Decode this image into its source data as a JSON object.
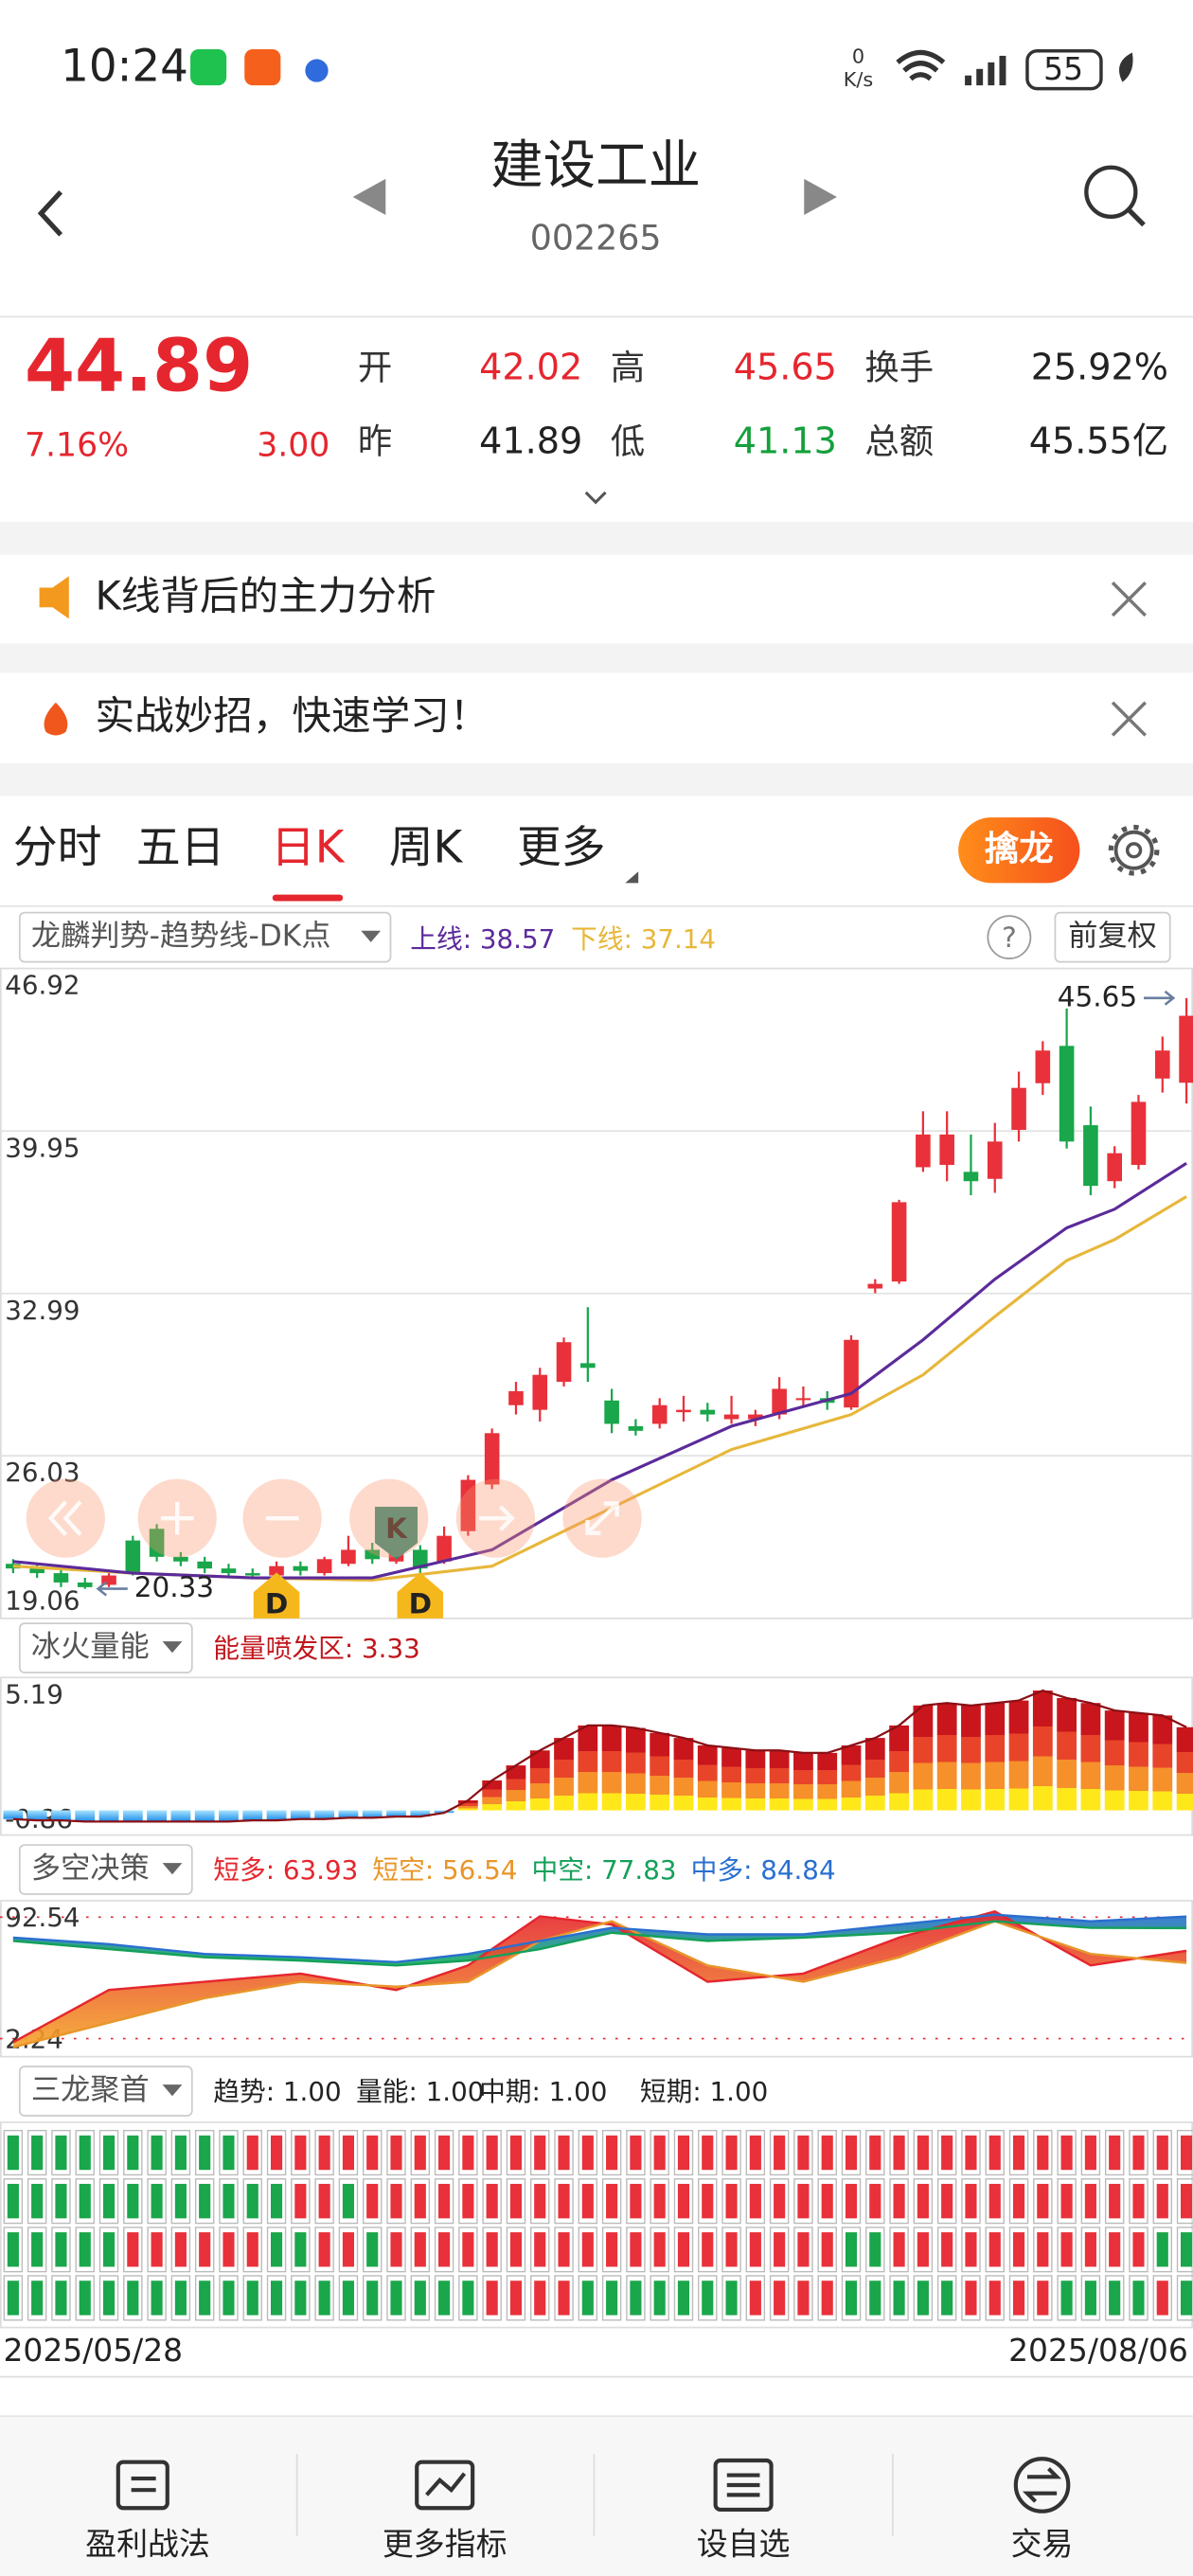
{
  "status_bar": {
    "time": "10:24",
    "net_speed": "0",
    "net_unit": "K/s",
    "battery": "55"
  },
  "header": {
    "title": "建设工业",
    "code": "002265"
  },
  "quote": {
    "price": "44.89",
    "change_pct": "7.16%",
    "change": "3.00",
    "fields": [
      {
        "label": "开",
        "value": "42.02",
        "color": "#e5262e"
      },
      {
        "label": "高",
        "value": "45.65",
        "color": "#e5262e"
      },
      {
        "label": "换手",
        "value": "25.92%",
        "color": "#222222"
      },
      {
        "label": "昨",
        "value": "41.89",
        "color": "#222222"
      },
      {
        "label": "低",
        "value": "41.13",
        "color": "#14a03c"
      },
      {
        "label": "总额",
        "value": "45.55亿",
        "color": "#222222"
      }
    ]
  },
  "banners": [
    "K线背后的主力分析",
    "实战妙招，快速学习！"
  ],
  "tabs": {
    "items": [
      "分时",
      "五日",
      "日K",
      "周K",
      "更多"
    ],
    "active": 2,
    "action": "擒龙"
  },
  "help": "?",
  "price_chart": {
    "indicator": "龙麟判势-趋势线-DK点",
    "legend": [
      {
        "label": "上线: 38.57",
        "color": "#5b2a9a"
      },
      {
        "label": "下线: 37.14",
        "color": "#e7b73a"
      }
    ],
    "adjust": "前复权",
    "ylim": [
      19.06,
      46.92
    ],
    "yticks": [
      46.92,
      39.95,
      32.99,
      26.03,
      19.06
    ],
    "candles": [
      [
        21.4,
        21.2,
        21.6,
        21.0
      ],
      [
        21.2,
        21.0,
        21.4,
        20.8
      ],
      [
        21.0,
        20.6,
        21.2,
        20.4
      ],
      [
        20.6,
        20.4,
        20.8,
        20.33
      ],
      [
        20.5,
        20.9,
        21.0,
        20.4
      ],
      [
        22.4,
        21.0,
        22.6,
        20.9
      ],
      [
        22.9,
        21.7,
        23.1,
        21.5
      ],
      [
        21.7,
        21.5,
        21.9,
        21.3
      ],
      [
        21.5,
        21.2,
        21.7,
        21.0
      ],
      [
        21.2,
        21.0,
        21.4,
        20.9
      ],
      [
        21.0,
        20.9,
        21.2,
        20.8
      ],
      [
        20.9,
        21.3,
        21.5,
        20.8
      ],
      [
        21.3,
        21.1,
        21.5,
        20.9
      ],
      [
        21.0,
        21.6,
        21.7,
        20.9
      ],
      [
        21.4,
        22.0,
        22.6,
        21.3
      ],
      [
        22.0,
        21.6,
        22.3,
        21.4
      ],
      [
        21.5,
        22.1,
        22.7,
        21.4
      ],
      [
        22.0,
        21.2,
        22.2,
        21.0
      ],
      [
        21.5,
        22.6,
        23.0,
        21.4
      ],
      [
        22.8,
        25.0,
        25.2,
        22.6
      ],
      [
        24.8,
        27.0,
        27.2,
        24.6
      ],
      [
        28.2,
        28.8,
        29.2,
        27.8
      ],
      [
        28.0,
        29.5,
        29.8,
        27.5
      ],
      [
        29.2,
        30.9,
        31.1,
        29.0
      ],
      [
        30.0,
        29.8,
        32.4,
        29.2
      ],
      [
        28.4,
        27.4,
        28.9,
        27.0
      ],
      [
        27.3,
        27.1,
        27.6,
        26.9
      ],
      [
        27.4,
        28.2,
        28.5,
        27.2
      ],
      [
        27.9,
        28.0,
        28.6,
        27.5
      ],
      [
        28.0,
        27.8,
        28.3,
        27.5
      ],
      [
        27.6,
        27.8,
        28.6,
        27.4
      ],
      [
        27.6,
        27.8,
        28.0,
        27.3
      ],
      [
        27.8,
        28.9,
        29.4,
        27.6
      ],
      [
        28.5,
        28.5,
        29.0,
        28.1
      ],
      [
        28.5,
        28.3,
        28.8,
        28.0
      ],
      [
        28.1,
        31.0,
        31.2,
        28.0
      ],
      [
        33.2,
        33.4,
        33.6,
        33.0
      ],
      [
        33.5,
        36.9,
        37.0,
        33.4
      ],
      [
        38.4,
        39.8,
        40.8,
        38.2
      ],
      [
        38.5,
        39.8,
        40.8,
        37.8
      ],
      [
        38.2,
        37.8,
        39.8,
        37.2
      ],
      [
        37.9,
        39.5,
        40.3,
        37.3
      ],
      [
        40.0,
        41.8,
        42.5,
        39.5
      ],
      [
        42.0,
        43.4,
        43.8,
        41.5
      ],
      [
        43.6,
        39.5,
        45.2,
        39.2
      ],
      [
        40.2,
        37.6,
        41.0,
        37.2
      ],
      [
        37.8,
        39.0,
        39.3,
        37.5
      ],
      [
        38.5,
        41.2,
        41.5,
        38.3
      ],
      [
        42.2,
        43.4,
        44.0,
        41.6
      ],
      [
        42.02,
        44.89,
        45.65,
        41.13
      ]
    ],
    "trend": {
      "x": [
        0,
        5,
        10,
        15,
        20,
        25,
        30,
        35,
        38,
        41,
        44,
        46,
        49
      ],
      "upper": [
        21.5,
        21.0,
        20.8,
        20.8,
        22.0,
        25.0,
        27.3,
        28.7,
        31.0,
        33.6,
        35.8,
        36.6,
        38.57
      ],
      "lower": [
        21.3,
        21.0,
        20.8,
        20.7,
        21.3,
        23.8,
        26.3,
        27.8,
        29.5,
        32.0,
        34.4,
        35.3,
        37.14
      ]
    },
    "max_label": "45.65",
    "min_label": "20.33",
    "markers": [
      {
        "label": "D",
        "x": 11
      },
      {
        "label": "K",
        "x": 16
      },
      {
        "label": "D",
        "x": 17
      }
    ]
  },
  "energy": {
    "indicator": "冰火量能",
    "legend": "能量喷发区: 3.33",
    "ylim": [
      -0.86,
      5.19
    ],
    "yticks": [
      5.19,
      -0.86
    ],
    "values": [
      -0.35,
      -0.4,
      -0.4,
      -0.45,
      -0.45,
      -0.45,
      -0.45,
      -0.45,
      -0.45,
      -0.45,
      -0.4,
      -0.4,
      -0.35,
      -0.35,
      -0.3,
      -0.3,
      -0.25,
      -0.25,
      -0.1,
      0.4,
      1.2,
      1.8,
      2.4,
      2.9,
      3.4,
      3.4,
      3.3,
      3.1,
      2.9,
      2.6,
      2.5,
      2.4,
      2.4,
      2.3,
      2.3,
      2.6,
      2.9,
      3.4,
      4.2,
      4.3,
      4.2,
      4.3,
      4.4,
      4.8,
      4.5,
      4.3,
      4.0,
      3.9,
      3.8,
      3.33
    ]
  },
  "long_short": {
    "indicator": "多空决策",
    "ylim": [
      2.24,
      92.54
    ],
    "yticks": [
      92.54,
      2.24
    ],
    "x": [
      0,
      4,
      8,
      12,
      16,
      19,
      22,
      25,
      29,
      33,
      37,
      41,
      45,
      49
    ],
    "series": [
      {
        "name": "短多: 63.93",
        "color": "#e5262e",
        "values": [
          8,
          40,
          45,
          50,
          40,
          55,
          85,
          80,
          45,
          50,
          72,
          88,
          55,
          63.93
        ]
      },
      {
        "name": "短空: 56.54",
        "color": "#e8962a",
        "values": [
          5,
          20,
          35,
          45,
          42,
          45,
          70,
          82,
          55,
          45,
          60,
          82,
          62,
          56.54
        ]
      },
      {
        "name": "中空: 77.83",
        "color": "#14a05a",
        "values": [
          70,
          65,
          60,
          58,
          55,
          58,
          65,
          75,
          70,
          72,
          75,
          82,
          78,
          77.83
        ]
      },
      {
        "name": "中多: 84.84",
        "color": "#2a6fd0",
        "values": [
          72,
          68,
          62,
          60,
          57,
          62,
          70,
          78,
          74,
          74,
          80,
          86,
          82,
          84.84
        ]
      }
    ]
  },
  "three_dragons": {
    "indicator": "三龙聚首",
    "legend": [
      "趋势: 1.00",
      "量能: 1.00",
      "中期: 1.00",
      "短期: 1.00"
    ],
    "rows": [
      "ggggggggggrrrrrrrrrrrrrrrrrrrrrrrrrrrrrrrrrrrrrrrr",
      "ggggggggggggrrgrrrrrrrrrrrrrrrrrrrrrrrrrrrrrrrrrrr",
      "gggggrrrrrrggrrgrrrrrrrrrrrrrrrrrrrggrrrrrrrrrrrgg",
      "ggggggggggggggggggggrrrrgggggggrrrrgggggrrrrggggrg"
    ]
  },
  "dates": [
    "2025/05/28",
    "2025/08/06"
  ],
  "nav": [
    "盈利战法",
    "更多指标",
    "设自选",
    "交易"
  ]
}
